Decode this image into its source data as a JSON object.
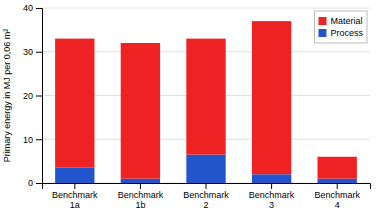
{
  "chart_data": {
    "type": "bar",
    "stacked": true,
    "categories": [
      "Benchmark\n1a",
      "Benchmark\n1b",
      "Benchmark\n2",
      "Benchmark\n3",
      "Benchmark\n4"
    ],
    "series": [
      {
        "name": "Process",
        "color": "#2255CC",
        "values": [
          3.5,
          1.0,
          6.5,
          2.0,
          1.0
        ]
      },
      {
        "name": "Material",
        "color": "#EE2222",
        "values": [
          29.5,
          31.0,
          26.5,
          35.0,
          5.0
        ]
      }
    ],
    "ylabel": "Primary energy in MJ per 0,06 m²",
    "ylim": [
      0,
      40
    ],
    "yticks": [
      0,
      10,
      20,
      30,
      40
    ],
    "grid": true,
    "legend": "upper right"
  }
}
